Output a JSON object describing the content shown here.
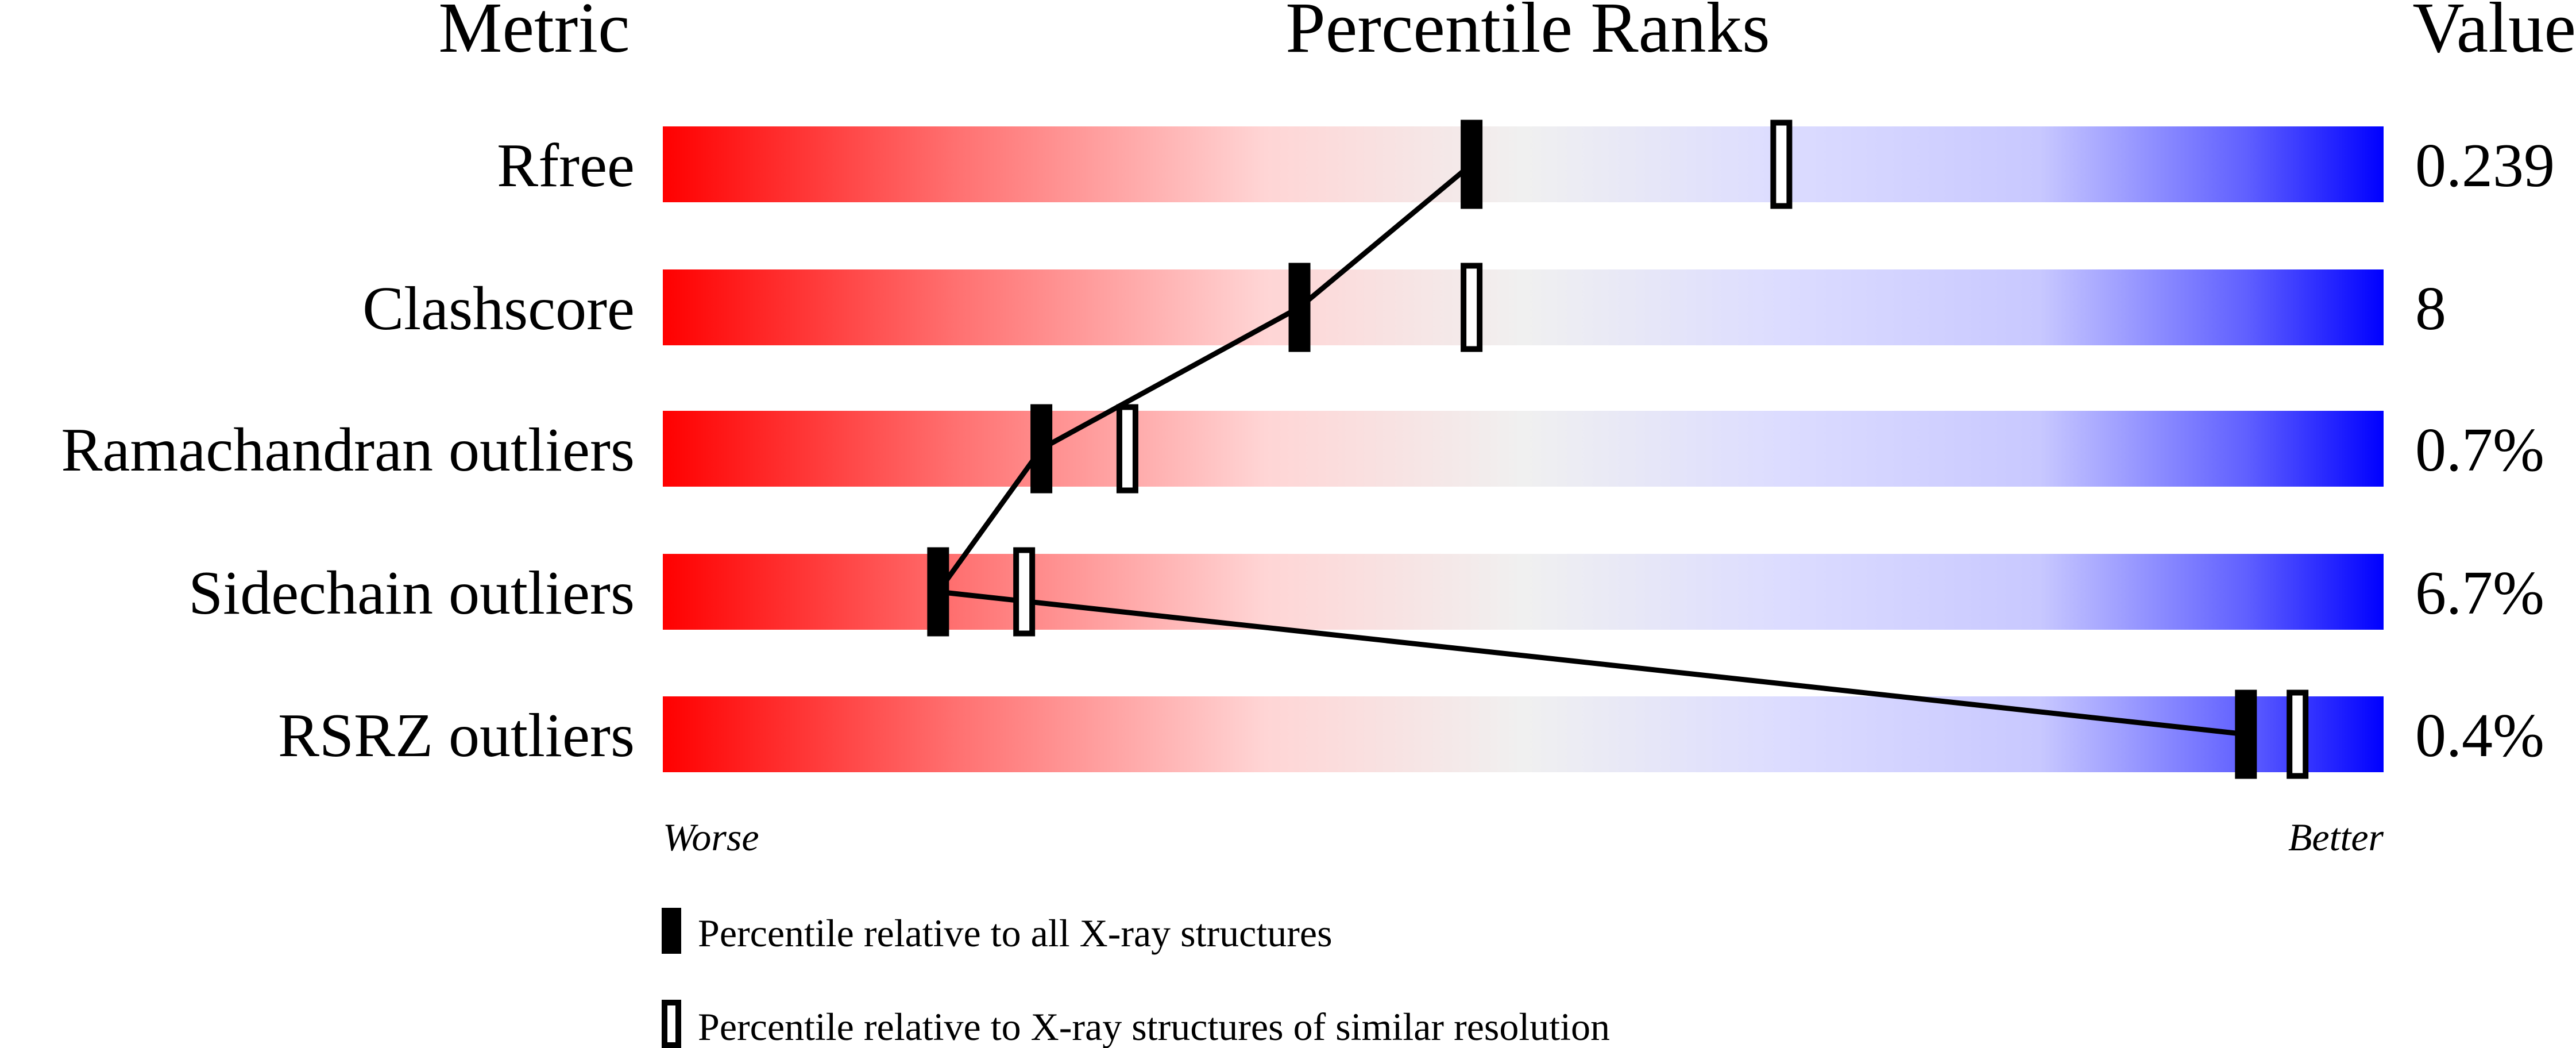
{
  "chart_data": {
    "type": "bar",
    "headers": {
      "metric": "Metric",
      "ranks": "Percentile Ranks",
      "value": "Value"
    },
    "xlim": [
      0,
      100
    ],
    "rows": [
      {
        "metric": "Rfree",
        "value": "0.239",
        "percentile_all": 47,
        "percentile_similar": 65
      },
      {
        "metric": "Clashscore",
        "value": "8",
        "percentile_all": 37,
        "percentile_similar": 47
      },
      {
        "metric": "Ramachandran outliers",
        "value": "0.7%",
        "percentile_all": 22,
        "percentile_similar": 27
      },
      {
        "metric": "Sidechain outliers",
        "value": "6.7%",
        "percentile_all": 16,
        "percentile_similar": 21
      },
      {
        "metric": "RSRZ outliers",
        "value": "0.4%",
        "percentile_all": 92,
        "percentile_similar": 95
      }
    ],
    "axis_labels": {
      "left": "Worse",
      "right": "Better"
    },
    "legend": [
      {
        "marker": "filled",
        "label": "Percentile relative to all X-ray structures"
      },
      {
        "marker": "open",
        "label": "Percentile relative to X-ray structures of similar resolution"
      }
    ],
    "colors": {
      "worse": "#ff0000",
      "middle": "#f0f0f0",
      "better": "#0000ff"
    }
  }
}
